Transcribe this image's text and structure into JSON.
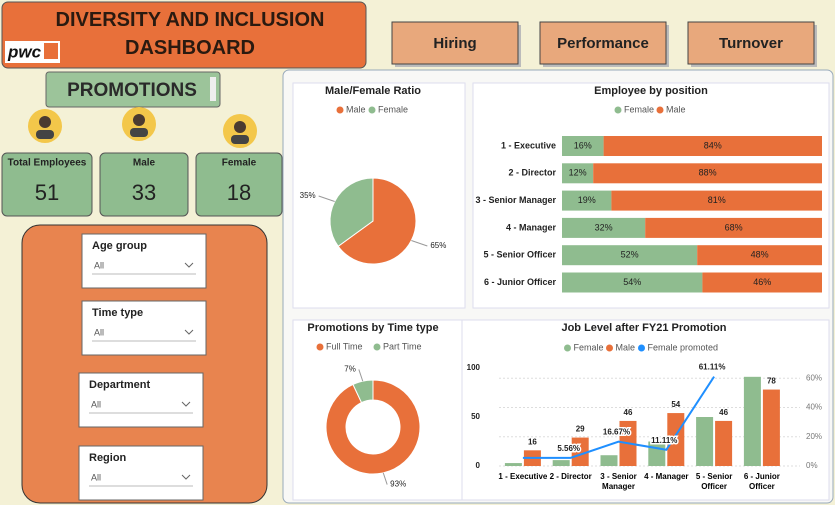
{
  "header": {
    "title": "DIVERSITY AND INCLUSION DASHBOARD",
    "logo": "pwc"
  },
  "nav": [
    "Hiring",
    "Performance",
    "Turnover"
  ],
  "section": "PROMOTIONS",
  "kpis": [
    {
      "label": "Total Employees",
      "value": 51
    },
    {
      "label": "Male",
      "value": 33
    },
    {
      "label": "Female",
      "value": 18
    }
  ],
  "filters": [
    {
      "label": "Age group",
      "value": "All"
    },
    {
      "label": "Time type",
      "value": "All"
    },
    {
      "label": "Department",
      "value": "All"
    },
    {
      "label": "Region",
      "value": "All"
    }
  ],
  "chart_data": [
    {
      "type": "pie",
      "title": "Male/Female Ratio",
      "categories": [
        "Male",
        "Female"
      ],
      "values": [
        65,
        35
      ],
      "value_labels": [
        "65%",
        "35%"
      ],
      "colors": [
        "#e8703a",
        "#8fbc8f"
      ],
      "legend": "top"
    },
    {
      "type": "bar",
      "orientation": "horizontal",
      "stacked": true,
      "title": "Employee by position",
      "categories": [
        "1 - Executive",
        "2 - Director",
        "3 - Senior Manager",
        "4 - Manager",
        "5 - Senior Officer",
        "6 - Junior Officer"
      ],
      "series": [
        {
          "name": "Female",
          "color": "#8fbc8f",
          "values": [
            16,
            12,
            19,
            32,
            52,
            54
          ],
          "value_labels": [
            "16%",
            "12%",
            "19%",
            "32%",
            "52%",
            "54%"
          ]
        },
        {
          "name": "Male",
          "color": "#e8703a",
          "values": [
            84,
            88,
            81,
            68,
            48,
            46
          ],
          "value_labels": [
            "84%",
            "88%",
            "81%",
            "68%",
            "48%",
            "46%"
          ]
        }
      ],
      "xlim": [
        0,
        100
      ],
      "legend": "top"
    },
    {
      "type": "donut",
      "title": "Promotions by Time type",
      "categories": [
        "Full Time",
        "Part Time"
      ],
      "values": [
        93,
        7
      ],
      "value_labels": [
        "93%",
        "7%"
      ],
      "colors": [
        "#e8703a",
        "#8fbc8f"
      ],
      "legend": "top"
    },
    {
      "type": "combo",
      "title": "Job Level after FY21 Promotion",
      "categories": [
        "1 - Executive",
        "2 - Director",
        "3 - Senior Manager",
        "4 - Manager",
        "5 - Senior Officer",
        "6 - Junior Officer"
      ],
      "series": [
        {
          "name": "Female",
          "type": "bar",
          "color": "#8fbc8f",
          "values": [
            3,
            6,
            11,
            25,
            50,
            91
          ]
        },
        {
          "name": "Male",
          "type": "bar",
          "color": "#e8703a",
          "values": [
            16,
            29,
            46,
            54,
            46,
            78
          ]
        },
        {
          "name": "Female promoted",
          "type": "line",
          "axis": "y2",
          "color": "#1f8fff",
          "values": [
            5.56,
            5.56,
            16.67,
            11.11,
            61.11,
            null
          ],
          "value_labels": [
            null,
            "5.56%",
            "16.67%",
            "11.11%",
            "61.11%",
            null
          ]
        }
      ],
      "ylim": [
        0,
        100
      ],
      "yticks": [
        0,
        50,
        100
      ],
      "y2lim": [
        0,
        67
      ],
      "y2ticks": [
        {
          "value": 0,
          "label": "0%"
        },
        {
          "value": 20,
          "label": "20%"
        },
        {
          "value": 40,
          "label": "40%"
        },
        {
          "value": 60,
          "label": "60%"
        }
      ],
      "grid": true,
      "legend": "top"
    }
  ]
}
